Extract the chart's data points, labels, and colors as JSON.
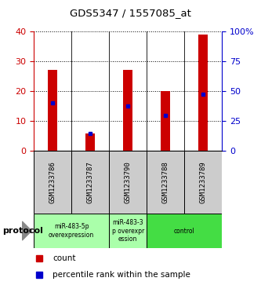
{
  "title": "GDS5347 / 1557085_at",
  "samples": [
    "GSM1233786",
    "GSM1233787",
    "GSM1233790",
    "GSM1233788",
    "GSM1233789"
  ],
  "red_values": [
    27,
    6,
    27,
    20,
    39
  ],
  "blue_values": [
    16,
    6,
    15,
    12,
    19
  ],
  "ylim_left": [
    0,
    40
  ],
  "ylim_right": [
    0,
    100
  ],
  "left_ticks": [
    0,
    10,
    20,
    30,
    40
  ],
  "right_ticks": [
    0,
    25,
    50,
    75,
    100
  ],
  "right_tick_labels": [
    "0",
    "25",
    "50",
    "75",
    "100%"
  ],
  "bar_color": "#cc0000",
  "blue_color": "#0000cc",
  "group_configs": [
    {
      "cols": [
        0,
        1
      ],
      "label": "miR-483-5p\noverexpression",
      "color": "#aaffaa"
    },
    {
      "cols": [
        2
      ],
      "label": "miR-483-3\np overexpr\nession",
      "color": "#aaffaa"
    },
    {
      "cols": [
        3,
        4
      ],
      "label": "control",
      "color": "#44dd44"
    }
  ],
  "protocol_label": "protocol",
  "legend_count": "count",
  "legend_percentile": "percentile rank within the sample",
  "sample_box_color": "#cccccc",
  "plot_bg": "#ffffff",
  "bar_width": 0.25
}
